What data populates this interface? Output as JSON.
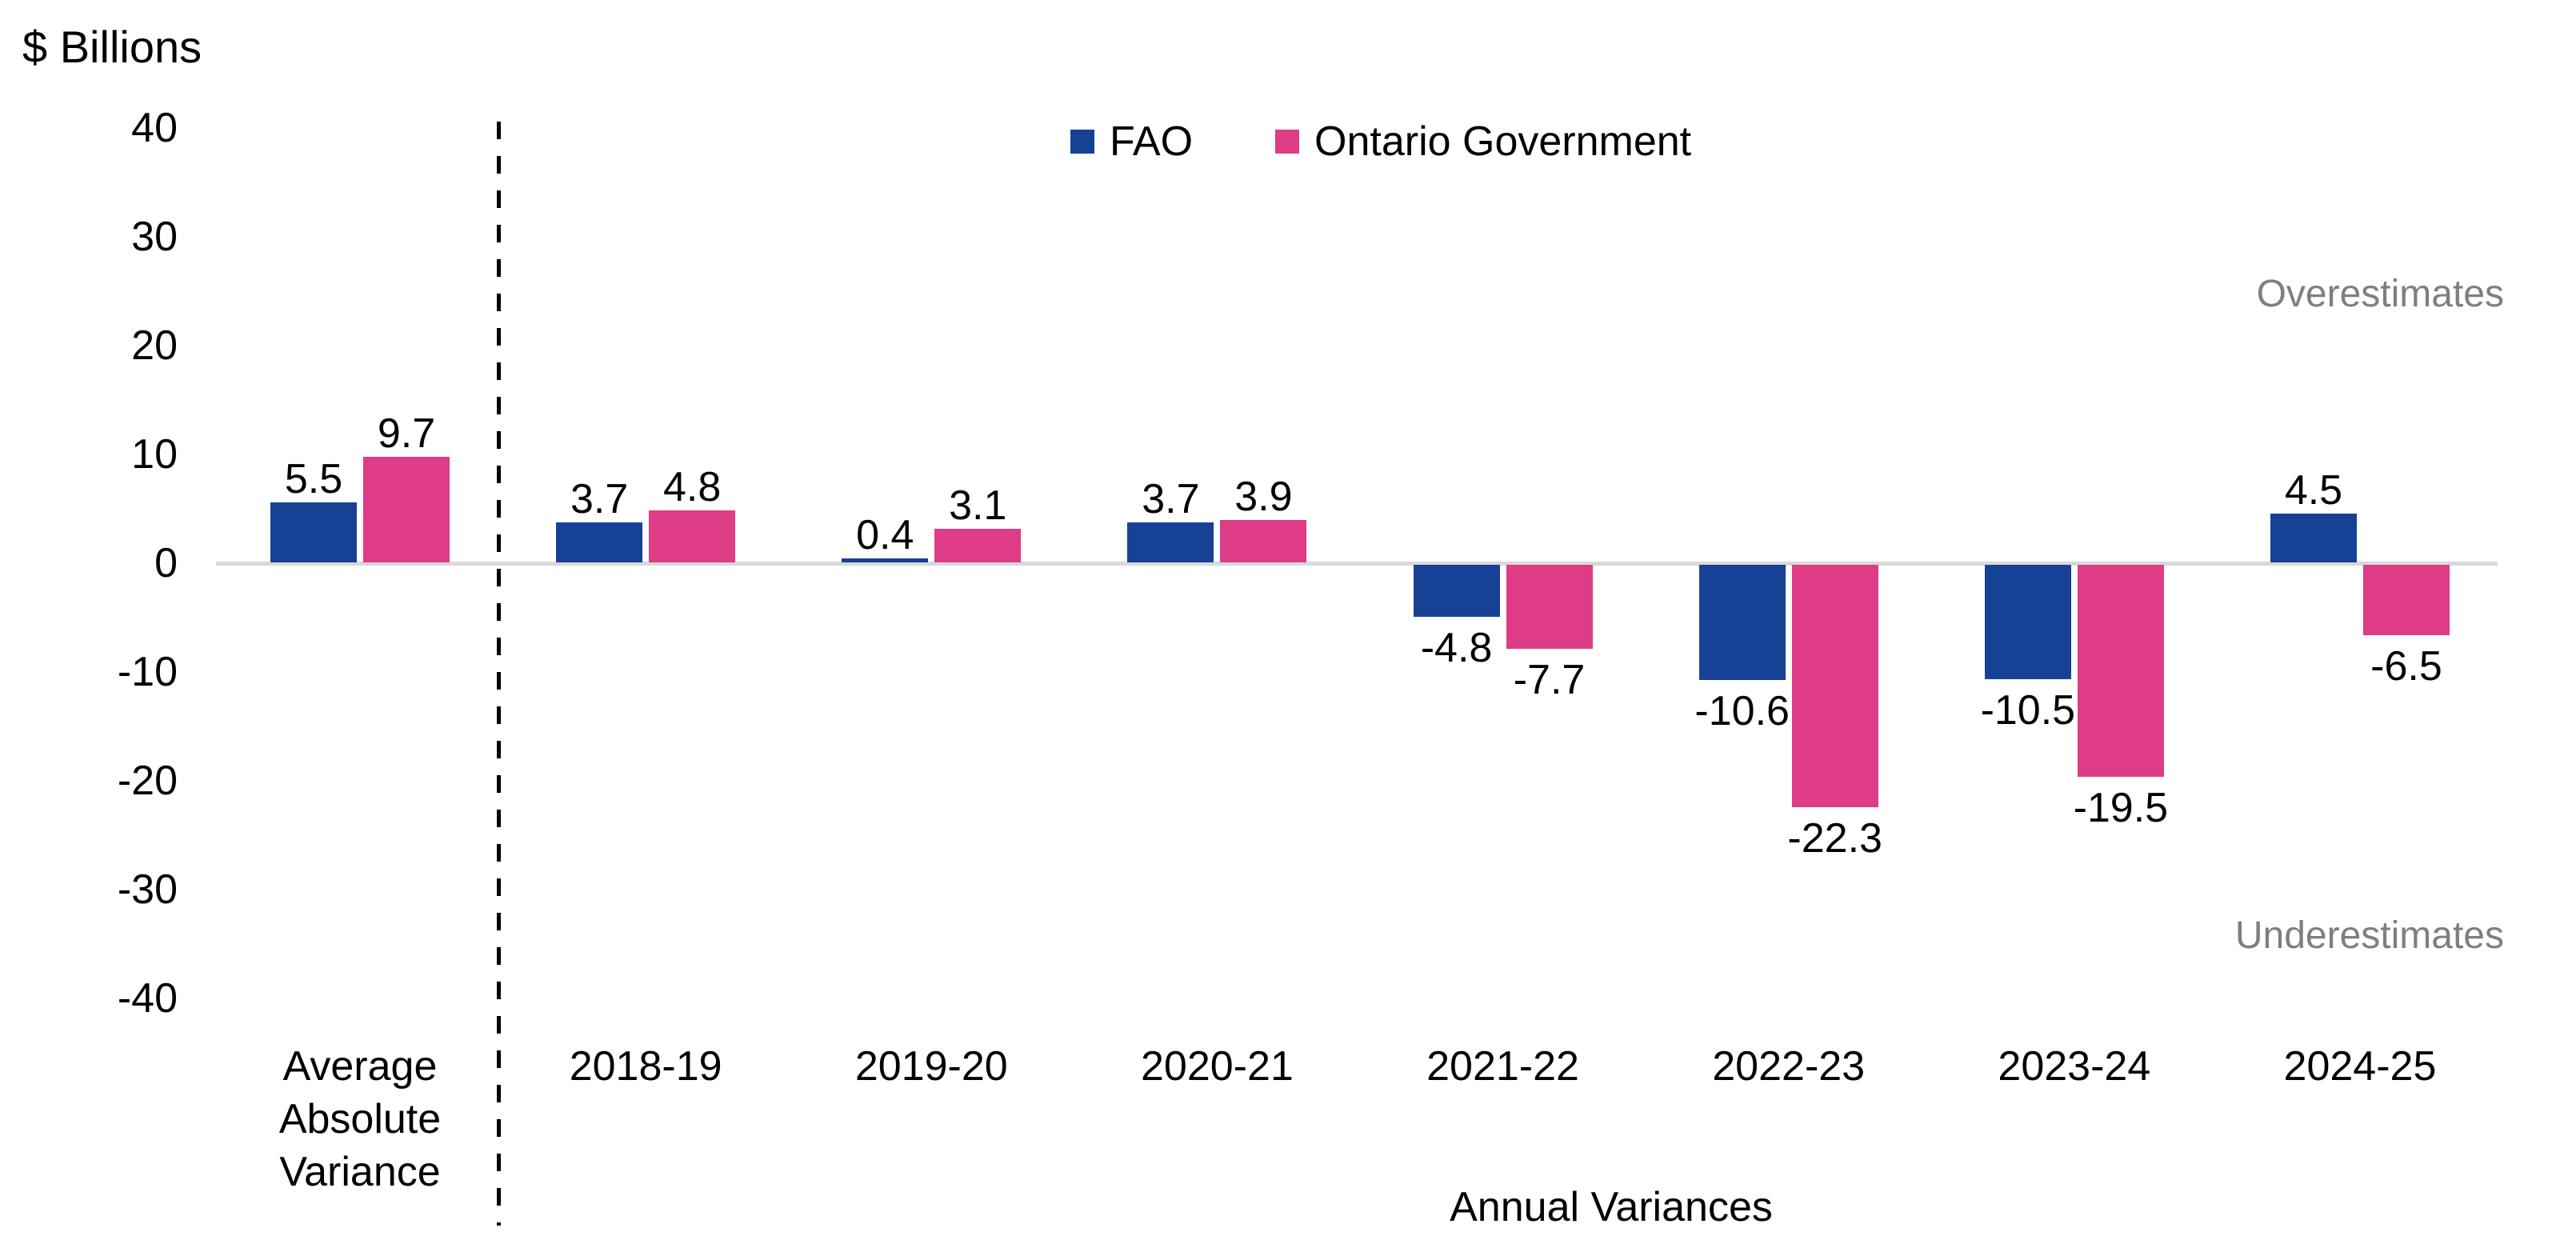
{
  "chart_data": {
    "type": "bar",
    "units_label": "$ Billions",
    "categories": [
      "Average Absolute Variance",
      "2018-19",
      "2019-20",
      "2020-21",
      "2021-22",
      "2022-23",
      "2023-24",
      "2024-25"
    ],
    "series": [
      {
        "name": "FAO",
        "color": "#164194",
        "values": [
          5.5,
          3.7,
          0.4,
          3.7,
          -4.8,
          -10.6,
          -10.5,
          4.5
        ]
      },
      {
        "name": "Ontario Government",
        "color": "#DE3C86",
        "values": [
          9.7,
          4.8,
          3.1,
          3.9,
          -7.7,
          -22.3,
          -19.5,
          -6.5
        ]
      }
    ],
    "y_axis": {
      "min": -40,
      "max": 40,
      "step": 10,
      "tick_labels": [
        "40",
        "30",
        "20",
        "10",
        "0",
        "-10",
        "-20",
        "-30",
        "-40"
      ]
    },
    "x_axis_title": "Annual Variances",
    "annotations": {
      "overestimates": "Overestimates",
      "underestimates": "Underestimates"
    },
    "separator": {
      "after_category_index": 0,
      "style": "dashed"
    },
    "zero_line_color": "#D9D9D9",
    "annotation_color": "#7F7F7F",
    "legend_position": "top-center",
    "grid": false,
    "data_label_decimals": 1
  }
}
